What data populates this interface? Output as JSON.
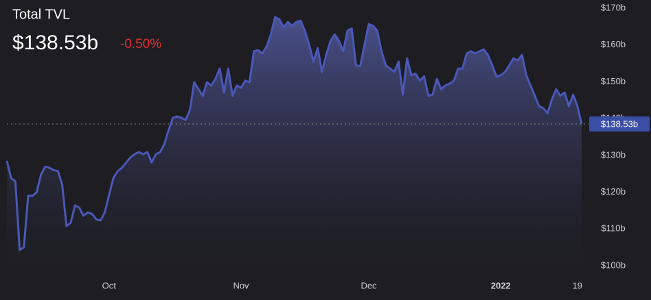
{
  "chart_data": {
    "type": "area",
    "title": "Total TVL",
    "current": {
      "value": 138.53,
      "label": "$138.53b"
    },
    "change": "-0.50%",
    "color": "#4a58b8",
    "categories": [
      null,
      null,
      null,
      null,
      null,
      null,
      null,
      null,
      null,
      null,
      null,
      null,
      null,
      null,
      null,
      null,
      null,
      null,
      null,
      null,
      null,
      null,
      null,
      null,
      "Oct",
      null,
      null,
      null,
      null,
      null,
      null,
      null,
      null,
      null,
      null,
      null,
      null,
      null,
      null,
      null,
      null,
      null,
      null,
      null,
      null,
      null,
      null,
      null,
      null,
      null,
      null,
      null,
      null,
      null,
      null,
      "Nov",
      null,
      null,
      null,
      null,
      null,
      null,
      null,
      null,
      null,
      null,
      null,
      null,
      null,
      null,
      null,
      null,
      null,
      null,
      null,
      null,
      null,
      null,
      null,
      null,
      null,
      null,
      null,
      null,
      null,
      "Dec",
      null,
      null,
      null,
      null,
      null,
      null,
      null,
      null,
      null,
      null,
      null,
      null,
      null,
      null,
      null,
      null,
      null,
      null,
      null,
      null,
      null,
      null,
      null,
      null,
      null,
      null,
      null,
      null,
      null,
      null,
      "2022",
      null,
      null,
      null,
      null,
      null,
      null,
      null,
      null,
      null,
      null,
      null,
      null,
      null,
      null,
      null,
      null,
      null,
      "19",
      null
    ],
    "values": [
      128.5,
      123.8,
      123,
      104.3,
      105,
      119,
      119,
      120,
      124.7,
      127,
      126.6,
      126,
      125.7,
      122,
      110.8,
      111.7,
      116.4,
      115.8,
      113.6,
      114.5,
      114.1,
      112.6,
      112.3,
      114.5,
      119.2,
      123.8,
      125.7,
      126.6,
      128,
      129.4,
      130.3,
      130.9,
      130.3,
      130.9,
      128.1,
      130.3,
      130.9,
      133.1,
      136.9,
      140.2,
      140.6,
      140.2,
      139.6,
      142.4,
      149.9,
      148,
      146.2,
      149.9,
      149,
      150.8,
      153.6,
      147.1,
      153.6,
      146.2,
      149,
      148.4,
      150.3,
      149.9,
      158.3,
      158.6,
      157.7,
      159.6,
      162.9,
      167.6,
      167,
      164.8,
      166.3,
      165.2,
      166.3,
      166.6,
      163.9,
      160.1,
      155.5,
      159.2,
      152.7,
      157.3,
      161.1,
      162.9,
      161.1,
      158.3,
      163.9,
      164.5,
      154.5,
      154.2,
      160.1,
      165.7,
      165.2,
      163.9,
      158.3,
      154.5,
      153.6,
      152.7,
      155.5,
      146.5,
      156.4,
      151.8,
      152.2,
      150.3,
      151.5,
      146.2,
      146.5,
      150.8,
      148,
      149,
      149.5,
      150.3,
      153.6,
      153.6,
      157.7,
      158.3,
      157.7,
      158.3,
      158.8,
      157.3,
      154.5,
      151.4,
      151.8,
      152.7,
      154.5,
      156.4,
      155.8,
      157.3,
      151.8,
      149,
      146.2,
      143.4,
      142.8,
      141.5,
      145.2,
      148,
      146.2,
      147.1,
      143.4,
      146.5,
      143.4,
      138.5
    ],
    "ylim": [
      100,
      170
    ],
    "yticks": [
      {
        "value": 100,
        "label": "$100b"
      },
      {
        "value": 110,
        "label": "$110b"
      },
      {
        "value": 120,
        "label": "$120b"
      },
      {
        "value": 130,
        "label": "$130b"
      },
      {
        "value": 140,
        "label": "$140b"
      },
      {
        "value": 150,
        "label": "$150b"
      },
      {
        "value": 160,
        "label": "$160b"
      },
      {
        "value": 170,
        "label": "$170b"
      }
    ]
  }
}
